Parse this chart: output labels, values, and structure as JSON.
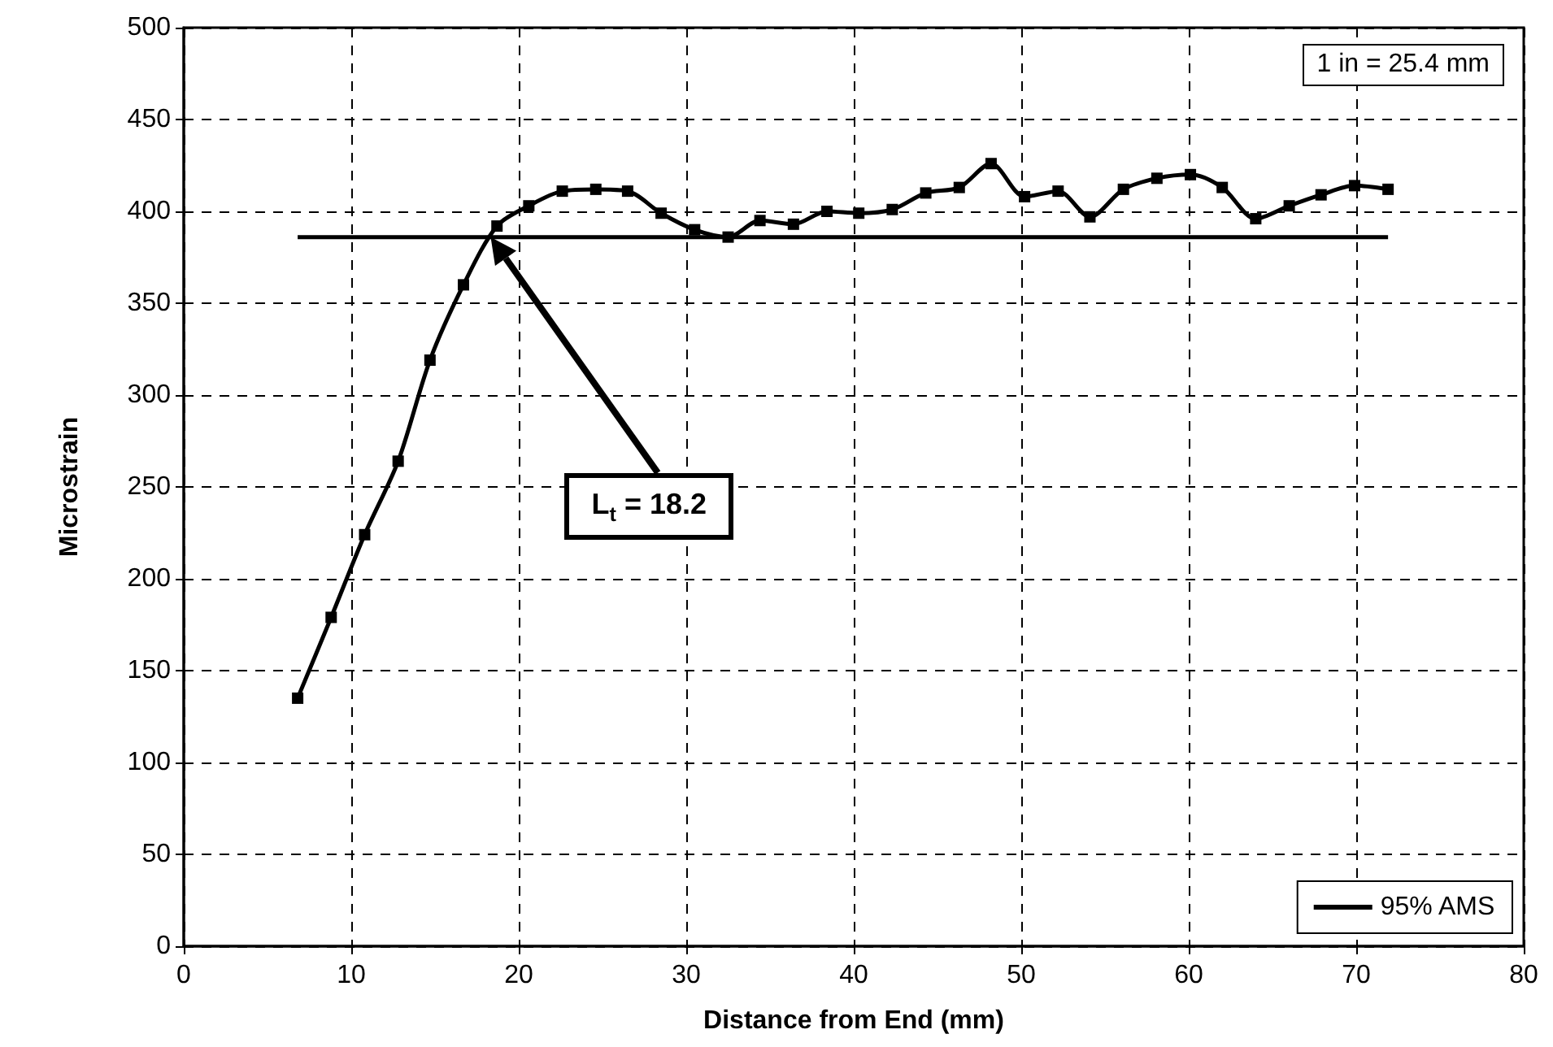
{
  "chart_data": {
    "type": "line",
    "xlabel": "Distance from End (mm)",
    "ylabel": "Microstrain",
    "xlim": [
      0,
      80
    ],
    "xticks": [
      0,
      10,
      20,
      30,
      40,
      50,
      60,
      70,
      80
    ],
    "ylim": [
      0,
      500
    ],
    "yticks": [
      0,
      50,
      100,
      150,
      200,
      250,
      300,
      350,
      400,
      450,
      500
    ],
    "grid": true,
    "legend": "bottom right",
    "annotations": [
      "1 in = 25.4 mm",
      "L$_{t}$ = 18.2"
    ],
    "series": [
      {
        "color": "#000000",
        "marker": "square",
        "x": [
          6.8,
          8.8,
          10.8,
          12.8,
          14.7,
          16.7,
          18.7,
          20.6,
          22.6,
          24.6,
          26.5,
          28.5,
          30.5,
          32.5,
          34.4,
          36.4,
          38.4,
          40.3,
          42.3,
          44.3,
          46.3,
          48.2,
          50.2,
          52.2,
          54.1,
          56.1,
          58.1,
          60.1,
          62.0,
          64.0,
          66.0,
          67.9,
          69.9,
          71.9
        ],
        "values": [
          135,
          179,
          224,
          264,
          319,
          360,
          392,
          403,
          411,
          412,
          411,
          399,
          390,
          386,
          395,
          393,
          400,
          399,
          401,
          410,
          413,
          426,
          408,
          411,
          397,
          412,
          418,
          420,
          413,
          396,
          403,
          409,
          414,
          412
        ]
      },
      {
        "name": "95% AMS",
        "color": "#000000",
        "marker": "none",
        "x": [
          6.8,
          71.9
        ],
        "values": [
          386,
          386
        ]
      }
    ]
  }
}
